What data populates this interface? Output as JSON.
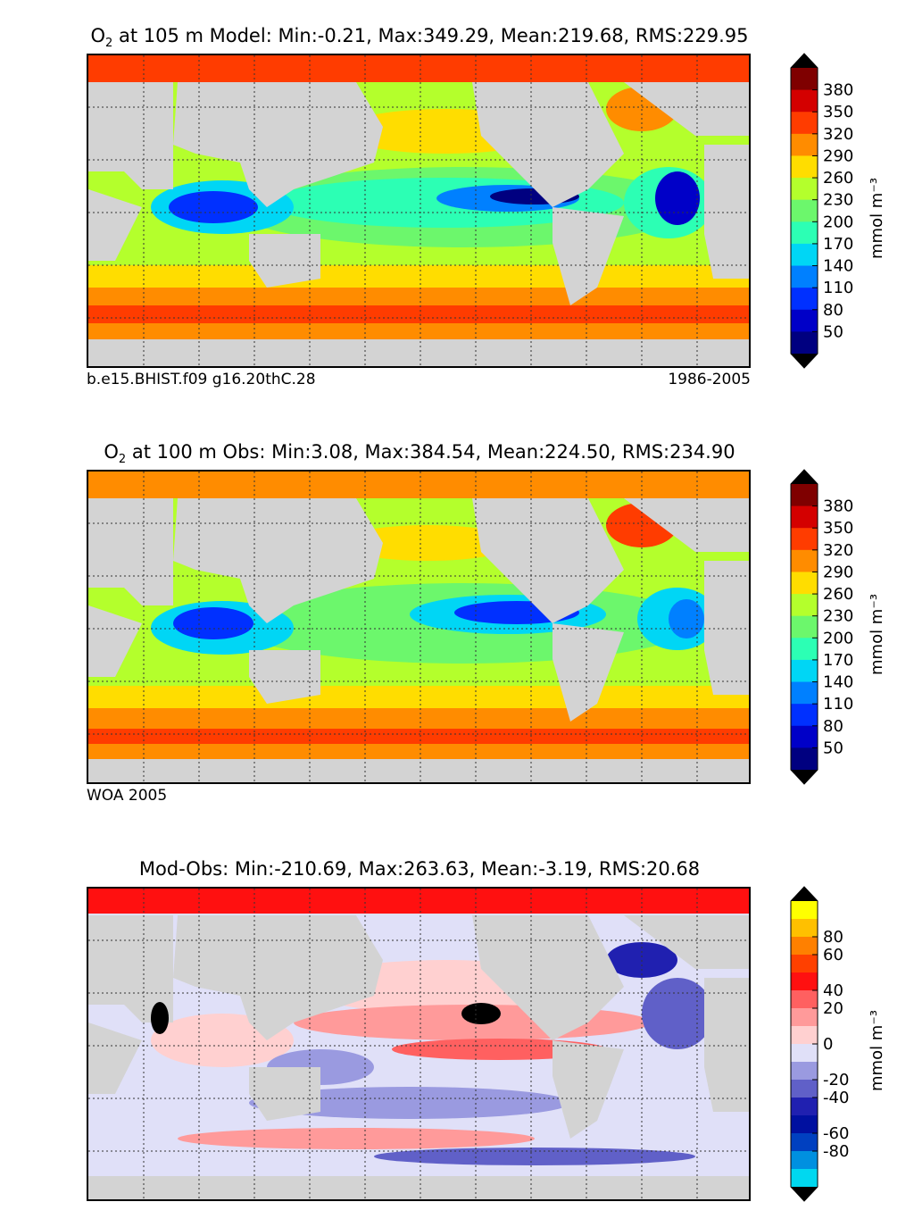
{
  "panels": [
    {
      "title_prefix": "O",
      "title_sub": "2",
      "title_rest": " at 105 m Model: Min:-0.21, Max:349.29, Mean:219.68, RMS:229.95",
      "footer_left": "b.e15.BHIST.f09 g16.20thC.28",
      "footer_right": "1986-2005"
    },
    {
      "title_prefix": "O",
      "title_sub": "2",
      "title_rest": " at 100 m Obs: Min:3.08, Max:384.54, Mean:224.50, RMS:234.90",
      "footer_left": "WOA 2005",
      "footer_right": ""
    },
    {
      "title_prefix": "",
      "title_sub": "",
      "title_rest": "Mod-Obs: Min:-210.69, Max:263.63, Mean:-3.19, RMS:20.68",
      "footer_left": "",
      "footer_right": ""
    }
  ],
  "colorbars": [
    {
      "unit": "mmol m⁻³",
      "ticks": [
        "380",
        "350",
        "320",
        "290",
        "260",
        "230",
        "200",
        "170",
        "140",
        "110",
        "80",
        "50"
      ],
      "colors": [
        "#7f0000",
        "#d40000",
        "#ff3c00",
        "#ff8c00",
        "#ffdd00",
        "#b4ff2c",
        "#6cf76c",
        "#2cffb4",
        "#00d6f5",
        "#0080ff",
        "#0030ff",
        "#0000c8",
        "#000080"
      ],
      "over_color": "#000000",
      "under_color": "#000000"
    },
    {
      "unit": "mmol m⁻³",
      "ticks": [
        "380",
        "350",
        "320",
        "290",
        "260",
        "230",
        "200",
        "170",
        "140",
        "110",
        "80",
        "50"
      ],
      "colors": [
        "#7f0000",
        "#d40000",
        "#ff3c00",
        "#ff8c00",
        "#ffdd00",
        "#b4ff2c",
        "#6cf76c",
        "#2cffb4",
        "#00d6f5",
        "#0080ff",
        "#0030ff",
        "#0000c8",
        "#000080"
      ],
      "over_color": "#000000",
      "under_color": "#000000"
    },
    {
      "unit": "mmol m⁻³",
      "ticks": [
        "80",
        "60",
        "40",
        "20",
        "0",
        "-20",
        "-40",
        "-60",
        "-80"
      ],
      "colors": [
        "#ffff00",
        "#ffc000",
        "#ff8000",
        "#ff4000",
        "#ff1010",
        "#ff6060",
        "#ff9a9a",
        "#ffd0d0",
        "#e0e0f8",
        "#9a9ae0",
        "#6060c8",
        "#2020b0",
        "#0010a0",
        "#0040c0",
        "#0090e0",
        "#00d8f0"
      ],
      "over_color": "#000000",
      "under_color": "#000000"
    }
  ]
}
